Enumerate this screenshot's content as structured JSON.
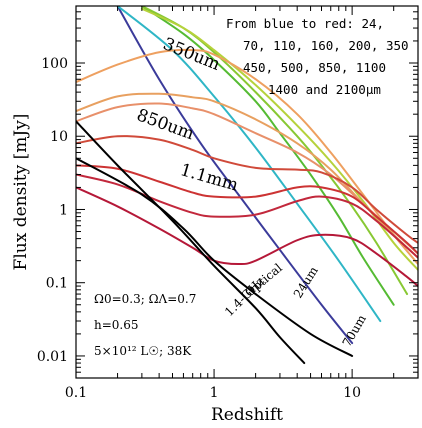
{
  "chart_data": {
    "type": "line",
    "xlabel": "Redshift",
    "ylabel": "Flux density [mJy]",
    "xscale": "log",
    "yscale": "log",
    "xlim": [
      0.1,
      30
    ],
    "ylim": [
      0.005,
      600
    ],
    "x_ticks": [
      {
        "value": 0.1,
        "label": "0.1"
      },
      {
        "value": 1,
        "label": "1"
      },
      {
        "value": 10,
        "label": "10"
      }
    ],
    "y_ticks": [
      {
        "value": 0.01,
        "label": "0.01"
      },
      {
        "value": 0.1,
        "label": "0.1"
      },
      {
        "value": 1,
        "label": "1"
      },
      {
        "value": 10,
        "label": "10"
      },
      {
        "value": 100,
        "label": "100"
      }
    ],
    "legend_lines": [
      "From blue to red: 24,",
      "70, 110, 160, 200, 350",
      "450, 500, 850, 1100",
      "1400 and 2100μm"
    ],
    "parameters": [
      "Ω0=0.3; ΩΛ=0.7",
      "h=0.65",
      "5×10¹² L☉; 38K"
    ],
    "annotations": [
      {
        "text": "350um",
        "x": 0.42,
        "y": 160,
        "rotate": 22,
        "cls": "band-label"
      },
      {
        "text": "850um",
        "x": 0.27,
        "y": 17,
        "rotate": 20,
        "cls": "band-label"
      },
      {
        "text": "1.1mm",
        "x": 0.56,
        "y": 3.0,
        "rotate": 16,
        "cls": "band-label"
      },
      {
        "text": "Optical",
        "x": 1.8,
        "y": 0.063,
        "rotate": -40,
        "cls": "curve-label"
      },
      {
        "text": "1.4-GHz",
        "x": 1.3,
        "y": 0.034,
        "rotate": -45,
        "cls": "curve-label"
      },
      {
        "text": "24um",
        "x": 4.2,
        "y": 0.06,
        "rotate": -58,
        "cls": "curve-label"
      },
      {
        "text": "70um",
        "x": 9.5,
        "y": 0.013,
        "rotate": -60,
        "cls": "curve-label"
      }
    ],
    "series": [
      {
        "color": "#3b3b9a",
        "x": [
          0.2,
          0.4,
          0.8,
          1.5,
          3,
          6,
          10
        ],
        "y": [
          600,
          60,
          8,
          1.6,
          0.28,
          0.05,
          0.015
        ]
      },
      {
        "color": "#2fb6c6",
        "x": [
          0.2,
          0.5,
          1,
          2,
          4,
          8,
          16
        ],
        "y": [
          600,
          150,
          35,
          7,
          1.2,
          0.2,
          0.03
        ]
      },
      {
        "color": "#55bb33",
        "x": [
          0.3,
          0.6,
          1,
          2,
          3,
          5,
          8,
          12,
          20
        ],
        "y": [
          600,
          250,
          110,
          30,
          11,
          3,
          0.8,
          0.22,
          0.05
        ]
      },
      {
        "color": "#88c833",
        "x": [
          0.3,
          0.6,
          1,
          2,
          4,
          6,
          10,
          15,
          25
        ],
        "y": [
          600,
          300,
          140,
          40,
          10,
          4,
          1.1,
          0.35,
          0.07
        ]
      },
      {
        "color": "#b6d23b",
        "x": [
          0.3,
          0.6,
          1,
          2,
          4,
          7,
          12,
          20,
          30
        ],
        "y": [
          550,
          300,
          150,
          50,
          14,
          4.5,
          1.3,
          0.35,
          0.15
        ]
      },
      {
        "color": "#eea060",
        "x": [
          0.1,
          0.2,
          0.4,
          0.7,
          1,
          2,
          4,
          7,
          12,
          20,
          30
        ],
        "y": [
          55,
          95,
          140,
          150,
          130,
          60,
          20,
          6,
          1.6,
          0.45,
          0.18
        ]
      },
      {
        "color": "#e8a060",
        "x": [
          0.1,
          0.2,
          0.4,
          0.7,
          1,
          2,
          4,
          7,
          12,
          20,
          30
        ],
        "y": [
          22,
          35,
          38,
          34,
          30,
          17,
          8,
          3.5,
          1.2,
          0.45,
          0.22
        ]
      },
      {
        "color": "#e8906a",
        "x": [
          0.1,
          0.2,
          0.4,
          0.7,
          1,
          2,
          4,
          7,
          12,
          20,
          30
        ],
        "y": [
          16,
          25,
          28,
          24,
          20,
          11,
          6,
          3,
          1.2,
          0.5,
          0.25
        ]
      },
      {
        "color": "#d04a3a",
        "x": [
          0.1,
          0.2,
          0.4,
          0.7,
          1,
          2,
          4,
          6,
          10,
          15,
          25,
          30
        ],
        "y": [
          8,
          10,
          9,
          6.5,
          5,
          3.7,
          3.5,
          3.2,
          2,
          1,
          0.45,
          0.35
        ]
      },
      {
        "color": "#cc3333",
        "x": [
          0.1,
          0.2,
          0.4,
          0.7,
          1,
          2,
          4,
          6,
          10,
          15,
          25,
          30
        ],
        "y": [
          4,
          3.6,
          2.4,
          1.7,
          1.5,
          1.5,
          2,
          2,
          1.5,
          0.8,
          0.35,
          0.25
        ]
      },
      {
        "color": "#c2283c",
        "x": [
          0.1,
          0.2,
          0.4,
          0.7,
          1,
          2,
          4,
          6,
          10,
          15,
          25,
          30
        ],
        "y": [
          3,
          2.2,
          1.3,
          0.9,
          0.8,
          0.85,
          1.3,
          1.5,
          1.2,
          0.7,
          0.3,
          0.22
        ]
      },
      {
        "color": "#b51838",
        "x": [
          0.1,
          0.2,
          0.4,
          0.7,
          1,
          1.5,
          2,
          4,
          6,
          10,
          15,
          25,
          30
        ],
        "y": [
          2,
          1.1,
          0.55,
          0.3,
          0.2,
          0.18,
          0.2,
          0.38,
          0.45,
          0.4,
          0.25,
          0.12,
          0.09
        ]
      },
      {
        "color": "#000000",
        "x": [
          0.1,
          0.2,
          0.5,
          1,
          2,
          3,
          4.5
        ],
        "y": [
          16,
          4,
          0.7,
          0.17,
          0.045,
          0.018,
          0.008
        ]
      },
      {
        "color": "#000000",
        "x": [
          0.1,
          0.3,
          0.6,
          1,
          2,
          5,
          10
        ],
        "y": [
          5,
          1.6,
          0.55,
          0.2,
          0.07,
          0.02,
          0.01
        ]
      }
    ]
  }
}
